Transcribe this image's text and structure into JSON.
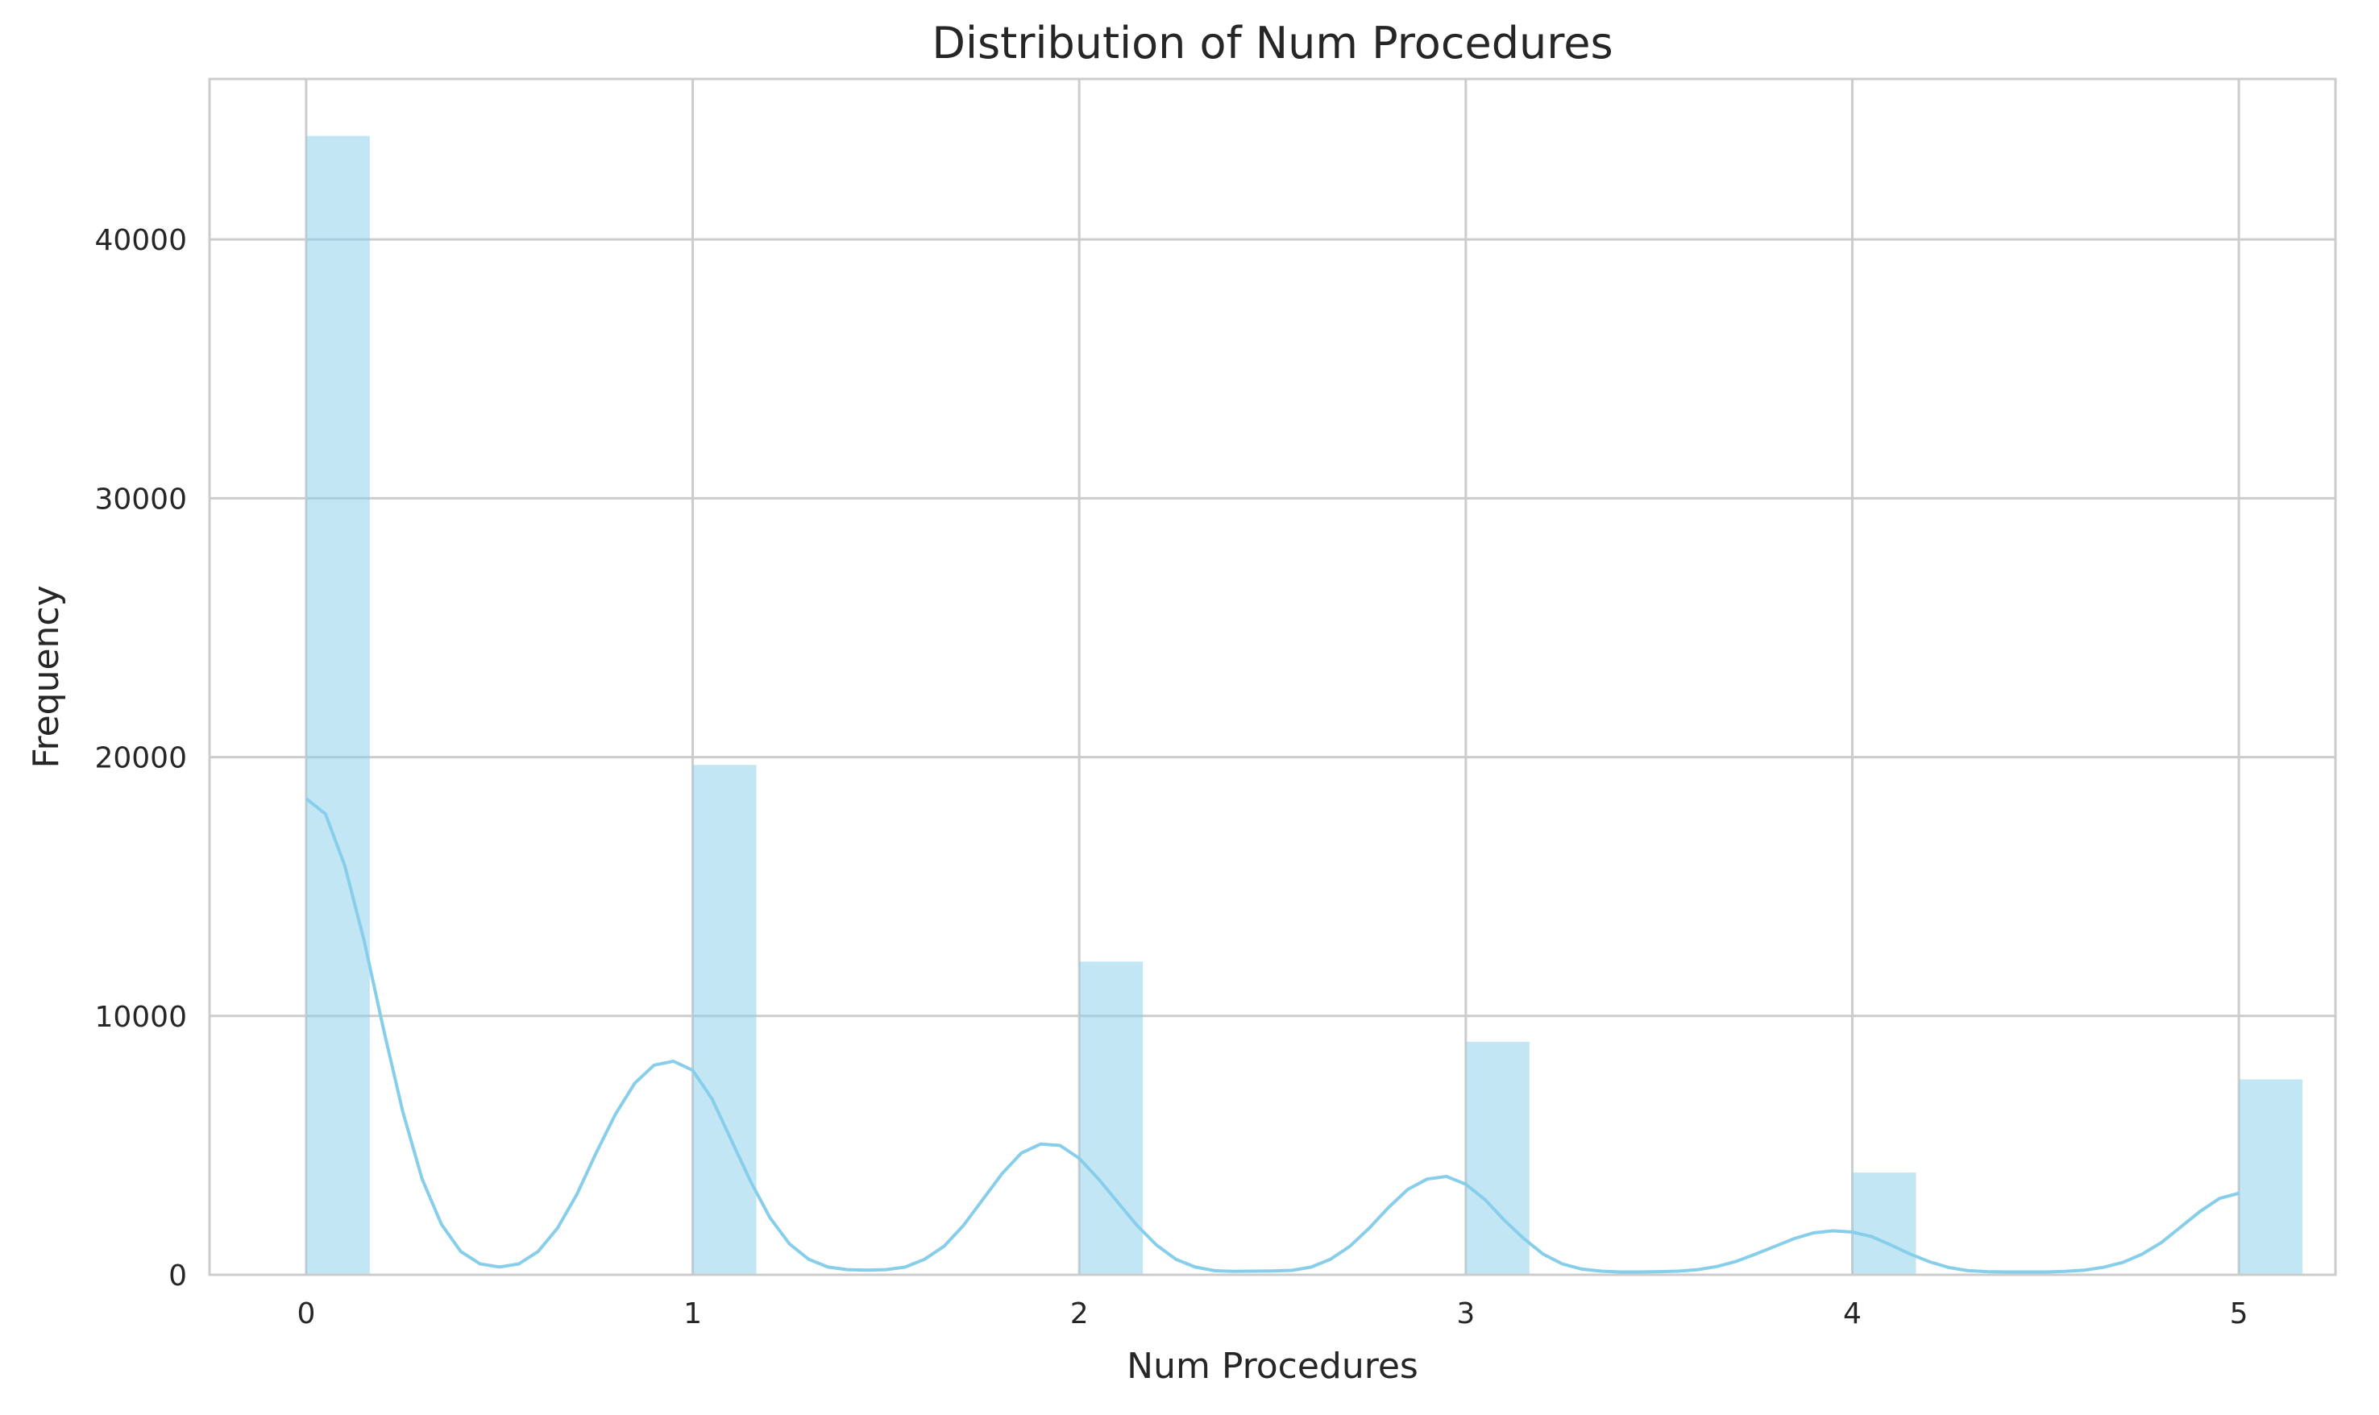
{
  "chart_data": {
    "type": "bar",
    "title": "Distribution of Num Procedures",
    "xlabel": "Num Procedures",
    "ylabel": "Frequency",
    "xlim": [
      -0.25,
      5.25
    ],
    "ylim": [
      0,
      46200
    ],
    "xticks": [
      0,
      1,
      2,
      3,
      4,
      5
    ],
    "yticks": [
      0,
      10000,
      20000,
      30000,
      40000
    ],
    "grid": true,
    "color": "#87ceeb",
    "bars": [
      {
        "x": 0,
        "value": 44000
      },
      {
        "x": 1,
        "value": 19700
      },
      {
        "x": 2,
        "value": 12100
      },
      {
        "x": 3,
        "value": 9000
      },
      {
        "x": 4,
        "value": 3950
      },
      {
        "x": 5,
        "value": 7550
      }
    ],
    "kde": {
      "label": "",
      "x": [
        0,
        0.05,
        0.1,
        0.15,
        0.2,
        0.25,
        0.3,
        0.35,
        0.4,
        0.45,
        0.5,
        0.55,
        0.6,
        0.65,
        0.7,
        0.75,
        0.8,
        0.85,
        0.9,
        0.95,
        1.0,
        1.05,
        1.1,
        1.15,
        1.2,
        1.25,
        1.3,
        1.35,
        1.4,
        1.45,
        1.5,
        1.55,
        1.6,
        1.65,
        1.7,
        1.75,
        1.8,
        1.85,
        1.9,
        1.95,
        2.0,
        2.05,
        2.1,
        2.15,
        2.2,
        2.25,
        2.3,
        2.35,
        2.4,
        2.45,
        2.5,
        2.55,
        2.6,
        2.65,
        2.7,
        2.75,
        2.8,
        2.85,
        2.9,
        2.95,
        3.0,
        3.05,
        3.1,
        3.15,
        3.2,
        3.25,
        3.3,
        3.35,
        3.4,
        3.45,
        3.5,
        3.55,
        3.6,
        3.65,
        3.7,
        3.75,
        3.8,
        3.85,
        3.9,
        3.95,
        4.0,
        4.05,
        4.1,
        4.15,
        4.2,
        4.25,
        4.3,
        4.35,
        4.4,
        4.45,
        4.5,
        4.55,
        4.6,
        4.65,
        4.7,
        4.75,
        4.8,
        4.85,
        4.9,
        4.95,
        5.0
      ],
      "y": [
        18400,
        17800,
        15800,
        12900,
        9500,
        6300,
        3700,
        1950,
        900,
        420,
        300,
        420,
        900,
        1800,
        3100,
        4700,
        6200,
        7400,
        8100,
        8250,
        7900,
        6800,
        5200,
        3600,
        2200,
        1200,
        600,
        300,
        200,
        180,
        200,
        300,
        600,
        1100,
        1900,
        2900,
        3900,
        4700,
        5050,
        5000,
        4500,
        3700,
        2800,
        1900,
        1150,
        600,
        300,
        160,
        130,
        140,
        150,
        170,
        300,
        600,
        1100,
        1800,
        2600,
        3300,
        3700,
        3800,
        3500,
        2900,
        2100,
        1400,
        800,
        420,
        220,
        140,
        110,
        110,
        120,
        140,
        200,
        320,
        520,
        800,
        1100,
        1400,
        1620,
        1700,
        1650,
        1480,
        1150,
        800,
        500,
        280,
        160,
        120,
        110,
        110,
        110,
        130,
        180,
        290,
        480,
        800,
        1250,
        1850,
        2450,
        2950,
        3150
      ]
    }
  }
}
